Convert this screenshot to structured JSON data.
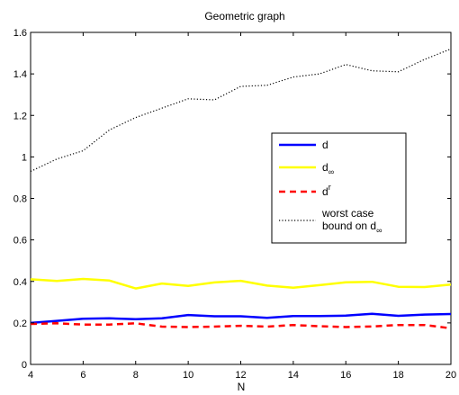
{
  "chart_data": {
    "type": "line",
    "title": "Geometric graph",
    "xlabel": "N",
    "ylabel": "",
    "xlim": [
      4,
      20
    ],
    "ylim": [
      0,
      1.6
    ],
    "xticks": [
      4,
      6,
      8,
      10,
      12,
      14,
      16,
      18,
      20
    ],
    "yticks": [
      0,
      0.2,
      0.4,
      0.6,
      0.8,
      1,
      1.2,
      1.4,
      1.6
    ],
    "xtick_labels": [
      "4",
      "6",
      "8",
      "10",
      "12",
      "14",
      "16",
      "18",
      "20"
    ],
    "ytick_labels": [
      "0",
      "0.2",
      "0.4",
      "0.6",
      "0.8",
      "1",
      "1.2",
      "1.4",
      "1.6"
    ],
    "grid": false,
    "legend_position": "center-right",
    "x": [
      4,
      5,
      6,
      7,
      8,
      9,
      10,
      11,
      12,
      13,
      14,
      15,
      16,
      17,
      18,
      19,
      20
    ],
    "series": [
      {
        "key": "d",
        "name": "d",
        "color": "#0000ff",
        "style": "solid",
        "values": [
          0.2,
          0.21,
          0.22,
          0.222,
          0.218,
          0.222,
          0.238,
          0.232,
          0.232,
          0.224,
          0.233,
          0.233,
          0.235,
          0.244,
          0.234,
          0.24,
          0.243
        ]
      },
      {
        "key": "dinf",
        "name": "d",
        "sub": "∞",
        "color": "#ffff00",
        "style": "solid",
        "values": [
          0.41,
          0.402,
          0.412,
          0.404,
          0.366,
          0.39,
          0.378,
          0.395,
          0.403,
          0.38,
          0.37,
          0.382,
          0.396,
          0.398,
          0.374,
          0.373,
          0.385
        ]
      },
      {
        "key": "dr",
        "name": "d",
        "sup": "r",
        "color": "#ff0000",
        "style": "dashed",
        "values": [
          0.195,
          0.198,
          0.192,
          0.192,
          0.198,
          0.182,
          0.18,
          0.182,
          0.186,
          0.182,
          0.19,
          0.184,
          0.18,
          0.183,
          0.19,
          0.19,
          0.174
        ]
      },
      {
        "key": "worst",
        "name_line1": "worst case",
        "name_line2": "bound on d",
        "sub": "∞",
        "color": "#000000",
        "style": "dotted",
        "values": [
          0.93,
          0.99,
          1.03,
          1.13,
          1.19,
          1.235,
          1.28,
          1.275,
          1.34,
          1.345,
          1.385,
          1.4,
          1.445,
          1.415,
          1.41,
          1.47,
          1.52
        ]
      }
    ]
  }
}
